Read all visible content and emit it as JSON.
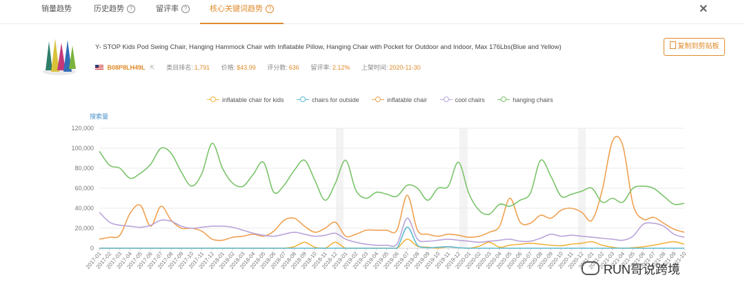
{
  "tabs": [
    {
      "label": "销量趋势",
      "help": false
    },
    {
      "label": "历史趋势",
      "help": true
    },
    {
      "label": "留评率",
      "help": true
    },
    {
      "label": "核心关键词趋势",
      "help": true,
      "active": true
    }
  ],
  "product": {
    "title": "Y- STOP Kids Pod Swing Chair, Hanging Hammock Chair with Inflatable Pillow, Hanging Chair with Pocket for Outdoor and Indoor, Max 176Lbs(Blue and Yellow)",
    "asin": "B08P8LH49L",
    "rank_label": "类目排名:",
    "rank_value": "1,791",
    "price_label": "价格:",
    "price_value": "$43.99",
    "rating_label": "评分数:",
    "rating_value": "636",
    "review_rate_label": "留评率:",
    "review_rate_value": "2.12%",
    "launch_label": "上架时间:",
    "launch_value": "2020-11-30",
    "copy_button": "复制到剪贴板"
  },
  "colors": {
    "accent": "#e08a2a",
    "inflatable_chair_for_kids": "#f2b33d",
    "chairs_for_outside": "#5bb9d3",
    "inflatable_chair": "#f0a050",
    "cool_chairs": "#b9a3d9",
    "hanging_chairs": "#7ac36a"
  },
  "icons": {
    "close": "close-icon",
    "copy": "copy-icon",
    "help": "question-circle-icon",
    "flag": "us-flag-icon",
    "external": "external-link-icon"
  },
  "watermark": "RUN哥说跨境",
  "chart_data": {
    "type": "line",
    "ylabel": "搜索量",
    "ylim": [
      0,
      120000
    ],
    "yticks": [
      "0",
      "20,000",
      "40,000",
      "60,000",
      "80,000",
      "100,000",
      "120,000"
    ],
    "x": [
      "2017-01",
      "2017-02",
      "2017-03",
      "2017-04",
      "2017-05",
      "2017-06",
      "2017-07",
      "2017-08",
      "2017-09",
      "2017-10",
      "2017-11",
      "2017-12",
      "2018-01",
      "2018-02",
      "2018-03",
      "2018-04",
      "2018-05",
      "2018-06",
      "2018-07",
      "2018-08",
      "2018-09",
      "2018-10",
      "2018-11",
      "2018-12",
      "2019-01",
      "2019-02",
      "2019-03",
      "2019-04",
      "2019-05",
      "2019-06",
      "2019-07",
      "2019-08",
      "2019-09",
      "2019-10",
      "2019-11",
      "2019-12",
      "2020-01",
      "2020-02",
      "2020-03",
      "2020-04",
      "2020-05",
      "2020-06",
      "2020-07",
      "2020-08",
      "2020-09",
      "2020-10",
      "2020-11",
      "2020-12",
      "2021-01",
      "2021-02",
      "2021-03",
      "2021-04",
      "2021-05",
      "2021-06",
      "2021-07",
      "2021-08",
      "2021-09",
      "2021-10"
    ],
    "series": [
      {
        "name": "inflatable chair for kids",
        "color": "#f2b33d",
        "values": [
          0,
          0,
          0,
          0,
          0,
          0,
          0,
          0,
          0,
          0,
          0,
          0,
          0,
          0,
          0,
          0,
          0,
          0,
          0,
          1500,
          6000,
          1000,
          0,
          6000,
          0,
          0,
          0,
          0,
          0,
          0,
          9000,
          2000,
          1000,
          0,
          1500,
          500,
          0,
          2000,
          6000,
          1000,
          3000,
          4000,
          5000,
          4000,
          3000,
          2500,
          4000,
          5000,
          6500,
          3000,
          1000,
          0,
          500,
          1500,
          3000,
          5000,
          6500,
          4000
        ]
      },
      {
        "name": "chairs for outside",
        "color": "#5bb9d3",
        "values": [
          0,
          0,
          0,
          0,
          0,
          0,
          0,
          0,
          0,
          0,
          0,
          0,
          0,
          0,
          0,
          0,
          0,
          0,
          0,
          0,
          0,
          0,
          0,
          0,
          0,
          0,
          0,
          0,
          0,
          0,
          21000,
          3000,
          500,
          1000,
          1500,
          500,
          0,
          0,
          0,
          0,
          0,
          0,
          0,
          0,
          0,
          0,
          0,
          0,
          0,
          0,
          0,
          0,
          0,
          0,
          0,
          0,
          0,
          0
        ]
      },
      {
        "name": "inflatable chair",
        "color": "#f0a050",
        "values": [
          9000,
          11000,
          13000,
          35000,
          43000,
          22000,
          42000,
          28000,
          20000,
          20000,
          17000,
          9000,
          8000,
          11000,
          12000,
          14000,
          12000,
          17000,
          28000,
          30000,
          22000,
          16000,
          20000,
          26000,
          12000,
          14000,
          18000,
          18000,
          18000,
          18000,
          53000,
          18000,
          14000,
          12000,
          14000,
          13000,
          11000,
          12000,
          16000,
          22000,
          50000,
          26000,
          25000,
          33000,
          30000,
          38000,
          40000,
          36000,
          28000,
          58000,
          107000,
          103000,
          44000,
          29000,
          31000,
          25000,
          19000,
          16000
        ]
      },
      {
        "name": "cool chairs",
        "color": "#b9a3d9",
        "values": [
          36000,
          26000,
          23000,
          22000,
          21000,
          23000,
          28000,
          27000,
          22000,
          20000,
          21000,
          22000,
          22000,
          21000,
          18000,
          15000,
          13000,
          12000,
          14000,
          16000,
          14000,
          12000,
          13000,
          15000,
          9000,
          6000,
          4000,
          3000,
          3000,
          4000,
          30000,
          9000,
          7000,
          8000,
          9000,
          8000,
          7000,
          6000,
          7000,
          8000,
          9000,
          7000,
          7000,
          10000,
          14000,
          12000,
          13000,
          12000,
          11000,
          10000,
          9000,
          8000,
          12000,
          24000,
          25000,
          22000,
          14000,
          11000
        ]
      },
      {
        "name": "hanging chairs",
        "color": "#7ac36a",
        "values": [
          97000,
          83000,
          80000,
          70000,
          75000,
          84000,
          100000,
          95000,
          76000,
          62000,
          75000,
          105000,
          80000,
          65000,
          62000,
          74000,
          86000,
          56000,
          63000,
          78000,
          88000,
          68000,
          48000,
          65000,
          88000,
          58000,
          50000,
          56000,
          54000,
          52000,
          63000,
          60000,
          48000,
          60000,
          62000,
          86000,
          55000,
          38000,
          34000,
          44000,
          42000,
          48000,
          55000,
          88000,
          72000,
          52000,
          54000,
          57000,
          60000,
          46000,
          50000,
          46000,
          60000,
          62000,
          60000,
          52000,
          44000,
          45000
        ]
      }
    ]
  }
}
